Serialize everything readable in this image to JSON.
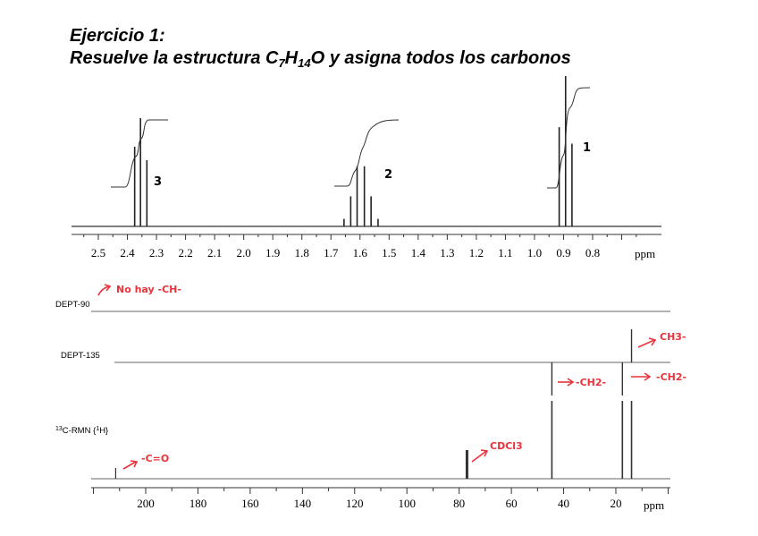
{
  "title": {
    "line1": "Ejercicio 1:",
    "line2_prefix": "Resuelve la estructura C",
    "sub1": "7",
    "h": "H",
    "sub2": "14",
    "line2_suffix": "O y asigna todos los carbonos"
  },
  "colors": {
    "annotation": "#e8343a",
    "spectrum": "#333333"
  },
  "chart_data": [
    {
      "type": "line",
      "spectrum": "1H-NMR",
      "xlabel": "ppm",
      "xlim": [
        2.55,
        0.68
      ],
      "ticks": [
        2.5,
        2.4,
        2.3,
        2.2,
        2.1,
        2.0,
        1.9,
        1.8,
        1.7,
        1.6,
        1.5,
        1.4,
        1.3,
        1.2,
        1.1,
        1.0,
        0.9,
        0.8
      ],
      "tick_labels": [
        "2.5",
        "2.4",
        "2.3",
        "2.2",
        "2.1",
        "2.0",
        "1.9",
        "1.8",
        "1.7",
        "1.6",
        "1.5",
        "1.4",
        "1.3",
        "1.2",
        "1.1",
        "1.0",
        "0.9",
        "0.8"
      ],
      "peaks": [
        {
          "ppm": 2.375,
          "h": 0.53
        },
        {
          "ppm": 2.355,
          "h": 0.72
        },
        {
          "ppm": 2.333,
          "h": 0.44
        },
        {
          "ppm": 1.655,
          "h": 0.05
        },
        {
          "ppm": 1.632,
          "h": 0.2
        },
        {
          "ppm": 1.61,
          "h": 0.4
        },
        {
          "ppm": 1.585,
          "h": 0.4
        },
        {
          "ppm": 1.562,
          "h": 0.2
        },
        {
          "ppm": 1.538,
          "h": 0.05
        },
        {
          "ppm": 0.915,
          "h": 0.66
        },
        {
          "ppm": 0.893,
          "h": 1.0
        },
        {
          "ppm": 0.871,
          "h": 0.55
        }
      ],
      "annotations": [
        {
          "text": "3",
          "ppm": 2.285,
          "group": 3
        },
        {
          "text": "2",
          "ppm": 1.49,
          "group": 2
        },
        {
          "text": "1",
          "ppm": 0.826,
          "group": 1
        }
      ]
    },
    {
      "type": "line",
      "spectrum": "13C",
      "xlabel": "ppm",
      "xlim": [
        220,
        0
      ],
      "ticks": [
        200,
        180,
        160,
        140,
        120,
        100,
        80,
        60,
        40,
        20
      ],
      "tick_labels": [
        "200",
        "180",
        "160",
        "140",
        "120",
        "100",
        "80",
        "60",
        "40",
        "20"
      ],
      "traces": [
        {
          "label": "DEPT-90",
          "peaks": [],
          "note": "No hay -CH-"
        },
        {
          "label": "DEPT-135",
          "peaks": [
            {
              "ppm": 44.5,
              "dir": "down",
              "note": "-CH2-"
            },
            {
              "ppm": 17.5,
              "dir": "down",
              "note": "-CH2-"
            },
            {
              "ppm": 14.0,
              "dir": "up",
              "note": "CH3-"
            }
          ]
        },
        {
          "label_pre": "13",
          "label_main": "C-RMN {",
          "label_sup": "1",
          "label_end": "H}",
          "peaks": [
            {
              "ppm": 211.5,
              "note": "-C=O"
            },
            {
              "ppm": 77.0,
              "note": "CDCl3"
            },
            {
              "ppm": 44.5
            },
            {
              "ppm": 17.5
            },
            {
              "ppm": 14.0
            }
          ]
        }
      ],
      "notes": {
        "dept90": "No hay -CH-",
        "ch2_a": "-CH2-",
        "ch2_b": "-CH2-",
        "ch3": "CH3-",
        "co": "-C=O",
        "cdcl3": "CDCl3"
      }
    }
  ]
}
